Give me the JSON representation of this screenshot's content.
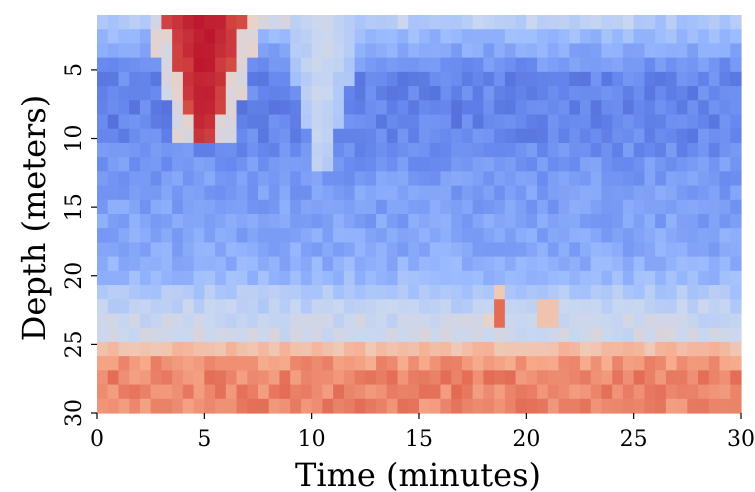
{
  "chart_data": {
    "type": "heatmap",
    "title": "",
    "xlabel": "Time (minutes)",
    "ylabel": "Depth (meters)",
    "xlim": [
      0,
      30
    ],
    "ylim": [
      30,
      1
    ],
    "x_ticks": [
      "0",
      "5",
      "10",
      "15",
      "20",
      "25",
      "30"
    ],
    "y_ticks": [
      "5",
      "10",
      "15",
      "20",
      "25",
      "30"
    ],
    "colormap": "coolwarm",
    "colormap_stops": [
      "#3b4cc0",
      "#6788ee",
      "#9abbff",
      "#c9d7f0",
      "#edd1c2",
      "#f7a889",
      "#e26952",
      "#b40426"
    ],
    "grid": false,
    "legend": "none",
    "n_cols": 60,
    "n_rows": 28,
    "value_scale": "0 = cold (blue), 1 = warm (red)",
    "depth_profile": [
      {
        "depth": 1,
        "value": 0.34
      },
      {
        "depth": 5,
        "value": 0.14
      },
      {
        "depth": 9,
        "value": 0.13
      },
      {
        "depth": 12,
        "value": 0.19
      },
      {
        "depth": 18,
        "value": 0.23
      },
      {
        "depth": 20,
        "value": 0.27
      },
      {
        "depth": 21,
        "value": 0.33
      },
      {
        "depth": 23,
        "value": 0.42
      },
      {
        "depth": 25,
        "value": 0.46
      },
      {
        "depth": 26,
        "value": 0.72
      },
      {
        "depth": 27,
        "value": 0.76
      },
      {
        "depth": 28,
        "value": 0.8
      },
      {
        "depth": 30,
        "value": 0.79
      }
    ],
    "warm_plume": {
      "time_center": 5,
      "depth_top": 1,
      "depth_bottom": 10,
      "peak_value": 0.98
    },
    "cool_plume": {
      "time_center": 10.5,
      "depth_top": 1,
      "depth_bottom": 12,
      "peak_value": 0.45
    },
    "spots": [
      {
        "time": 18.7,
        "depth": 23,
        "value": 0.85
      },
      {
        "time": 18.7,
        "depth": 22,
        "value": 0.6
      },
      {
        "time": 21,
        "depth": 23,
        "value": 0.62
      },
      {
        "time": 18.2,
        "depth": 23.5,
        "value": 0.55
      }
    ]
  }
}
